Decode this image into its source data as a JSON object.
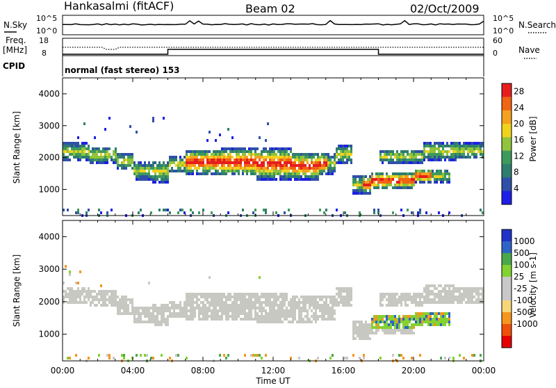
{
  "header": {
    "station": "Hankasalmi (fitACF)",
    "beam": "Beam 02",
    "date": "02/Oct/2009"
  },
  "status_panels": {
    "nsky_label": "N.Sky",
    "nsearch_label": "N.Search",
    "nsky_ticks": [
      "10^5",
      "10^0"
    ],
    "freq_label_1": "Freq.",
    "freq_label_2": "[MHz]",
    "freq_ticks": [
      "18",
      "8"
    ],
    "nave_label": "Nave",
    "nave_ticks": [
      "60",
      "0"
    ],
    "cpid_label": "CPID",
    "cpid_text": "normal (fast stereo) 153"
  },
  "colors": {
    "power_scale": [
      "#1e1ee6",
      "#2e50a8",
      "#2f7d6e",
      "#3e9a5c",
      "#8fc43c",
      "#f0d21e",
      "#f5a01e",
      "#f06414",
      "#e61e1e"
    ],
    "velocity_scale": [
      "#e60000",
      "#f0500a",
      "#f5961e",
      "#f5d778",
      "#c8c8c8",
      "#c8c8c8",
      "#82d232",
      "#4aa84a",
      "#2e64c8",
      "#1e32c8"
    ],
    "gray": "#c8c8c2"
  },
  "chart_data": [
    {
      "type": "heatmap",
      "name": "power",
      "xlabel": "Time UT",
      "ylabel": "Slant Range [km]",
      "xticks": [
        "00:00",
        "04:00",
        "08:00",
        "12:00",
        "16:00",
        "20:00",
        "00:00"
      ],
      "xlim_hours": [
        0,
        24
      ],
      "yticks": [
        1000,
        2000,
        3000,
        4000
      ],
      "ylim": [
        180,
        4500
      ],
      "colorbar_label": "Power [dB]",
      "colorbar_ticks": [
        4,
        8,
        12,
        16,
        20,
        24,
        28
      ],
      "colorbar_range": [
        0,
        30
      ]
    },
    {
      "type": "heatmap",
      "name": "velocity",
      "xlabel": "Time UT",
      "ylabel": "Slant Range [km]",
      "xticks": [
        "00:00",
        "04:00",
        "08:00",
        "12:00",
        "16:00",
        "20:00",
        "00:00"
      ],
      "xlim_hours": [
        0,
        24
      ],
      "yticks": [
        1000,
        2000,
        3000,
        4000
      ],
      "ylim": [
        180,
        4500
      ],
      "colorbar_label": "Velocity [m s-1]",
      "colorbar_ticks": [
        1000,
        500,
        100,
        25,
        -25,
        -100,
        -500,
        -1000
      ]
    }
  ],
  "echo_bands": [
    {
      "t0": 0.0,
      "t1": 1.5,
      "r0": 1950,
      "r1": 2500
    },
    {
      "t0": 1.5,
      "t1": 3.0,
      "r0": 1850,
      "r1": 2400
    },
    {
      "t0": 3.0,
      "t1": 4.0,
      "r0": 1650,
      "r1": 2200
    },
    {
      "t0": 4.0,
      "t1": 5.0,
      "r0": 1350,
      "r1": 1900
    },
    {
      "t0": 5.0,
      "t1": 6.0,
      "r0": 1250,
      "r1": 1950
    },
    {
      "t0": 6.0,
      "t1": 7.0,
      "r0": 1550,
      "r1": 2100
    },
    {
      "t0": 7.0,
      "t1": 9.0,
      "r0": 1500,
      "r1": 2300
    },
    {
      "t0": 9.0,
      "t1": 11.0,
      "r0": 1450,
      "r1": 2350
    },
    {
      "t0": 11.0,
      "t1": 13.0,
      "r0": 1350,
      "r1": 2350
    },
    {
      "t0": 13.0,
      "t1": 14.5,
      "r0": 1350,
      "r1": 2200
    },
    {
      "t0": 14.5,
      "t1": 15.5,
      "r0": 1500,
      "r1": 2200
    },
    {
      "t0": 15.5,
      "t1": 16.5,
      "r0": 1850,
      "r1": 2450
    },
    {
      "t0": 16.5,
      "t1": 17.5,
      "r0": 900,
      "r1": 1500
    },
    {
      "t0": 17.5,
      "t1": 20.0,
      "r0": 1050,
      "r1": 1600
    },
    {
      "t0": 20.0,
      "t1": 22.0,
      "r0": 1250,
      "r1": 1700
    },
    {
      "t0": 18.0,
      "t1": 20.5,
      "r0": 1850,
      "r1": 2300
    },
    {
      "t0": 20.5,
      "t1": 22.5,
      "r0": 1950,
      "r1": 2550
    },
    {
      "t0": 22.5,
      "t1": 24.0,
      "r0": 2000,
      "r1": 2500
    }
  ]
}
